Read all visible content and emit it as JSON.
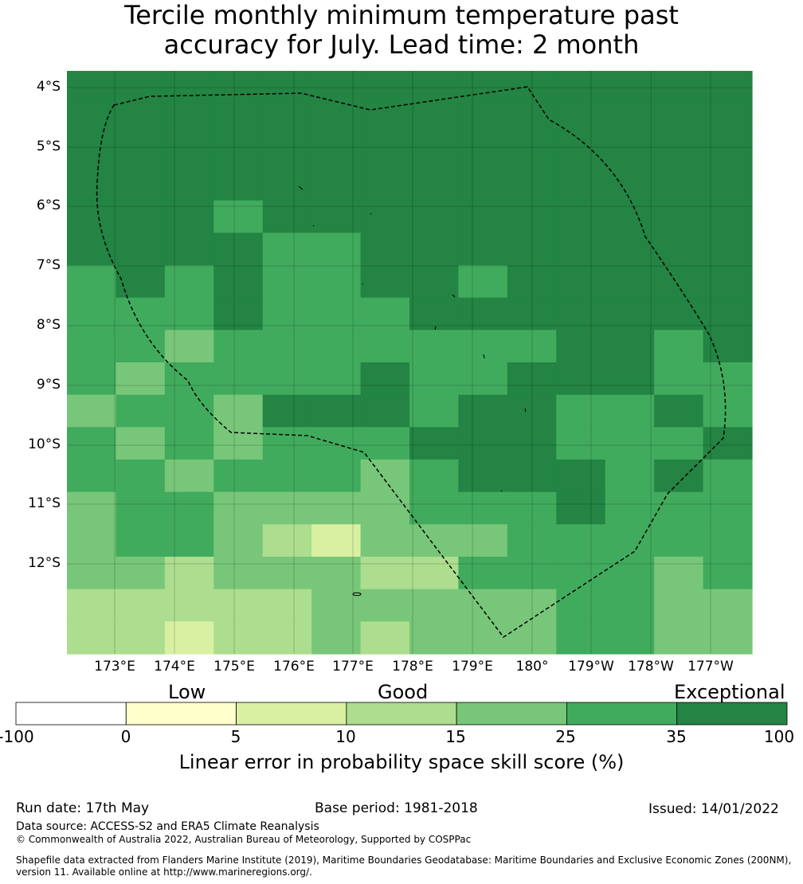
{
  "title": {
    "line1": "Tercile monthly minimum temperature past",
    "line2": "accuracy for July. Lead time: 2 month"
  },
  "map": {
    "lat_labels": [
      "4°S",
      "5°S",
      "6°S",
      "7°S",
      "8°S",
      "9°S",
      "10°S",
      "11°S",
      "12°S"
    ],
    "lon_labels": [
      "173°E",
      "174°E",
      "175°E",
      "176°E",
      "177°E",
      "178°E",
      "179°E",
      "180°",
      "179°W",
      "178°W",
      "177°W"
    ],
    "grid": [
      [
        6,
        6,
        6,
        6,
        6,
        6,
        6,
        6,
        6,
        6,
        6,
        6,
        6,
        6
      ],
      [
        6,
        6,
        6,
        6,
        6,
        6,
        6,
        6,
        6,
        6,
        6,
        6,
        6,
        6
      ],
      [
        6,
        6,
        6,
        6,
        6,
        6,
        6,
        6,
        6,
        6,
        6,
        6,
        6,
        6
      ],
      [
        6,
        6,
        6,
        6,
        6,
        6,
        6,
        6,
        6,
        6,
        6,
        6,
        6,
        6
      ],
      [
        6,
        6,
        6,
        5,
        6,
        6,
        6,
        6,
        6,
        6,
        6,
        6,
        6,
        6
      ],
      [
        6,
        6,
        6,
        6,
        5,
        5,
        6,
        6,
        6,
        6,
        6,
        6,
        6,
        6
      ],
      [
        5,
        6,
        5,
        6,
        5,
        5,
        6,
        6,
        5,
        6,
        6,
        6,
        6,
        6
      ],
      [
        5,
        5,
        5,
        6,
        5,
        5,
        5,
        6,
        6,
        6,
        6,
        6,
        6,
        6
      ],
      [
        5,
        5,
        4,
        5,
        5,
        5,
        5,
        5,
        5,
        5,
        6,
        6,
        5,
        6
      ],
      [
        5,
        4,
        5,
        5,
        5,
        5,
        6,
        5,
        5,
        6,
        6,
        6,
        5,
        5
      ],
      [
        4,
        5,
        5,
        4,
        6,
        6,
        6,
        5,
        6,
        6,
        5,
        5,
        6,
        5
      ],
      [
        5,
        4,
        5,
        4,
        5,
        5,
        5,
        6,
        6,
        6,
        5,
        5,
        5,
        6
      ],
      [
        5,
        5,
        4,
        5,
        5,
        5,
        4,
        5,
        6,
        6,
        6,
        5,
        6,
        5
      ],
      [
        4,
        5,
        5,
        4,
        4,
        4,
        4,
        5,
        5,
        5,
        6,
        5,
        5,
        5
      ],
      [
        4,
        5,
        5,
        4,
        3,
        2,
        4,
        4,
        4,
        5,
        5,
        5,
        5,
        5
      ],
      [
        4,
        4,
        3,
        4,
        4,
        4,
        3,
        3,
        5,
        5,
        5,
        5,
        4,
        5
      ],
      [
        3,
        3,
        3,
        3,
        3,
        4,
        4,
        4,
        4,
        4,
        5,
        5,
        4,
        4
      ],
      [
        3,
        3,
        2,
        3,
        3,
        4,
        3,
        4,
        4,
        4,
        5,
        5,
        4,
        4
      ]
    ]
  },
  "colorbar": {
    "categories": [
      "Low",
      "Good",
      "Exceptional"
    ],
    "ticks": [
      "-100",
      "0",
      "5",
      "10",
      "15",
      "25",
      "35",
      "100"
    ],
    "colors": [
      "#ffffff",
      "#ffffcc",
      "#d9f0a3",
      "#addd8e",
      "#78c679",
      "#41ab5d",
      "#238443"
    ],
    "label": "Linear error in probability space skill score (%)"
  },
  "footer": {
    "run_date": "Run date: 17th May",
    "base_period": "Base period: 1981-2018",
    "issued": "Issued: 14/01/2022",
    "data_source": "Data source: ACCESS-S2 and ERA5 Climate Reanalysis",
    "copyright": "© Commonwealth of Australia 2022, Australian Bureau of Meteorology, Supported by COSPPac",
    "shapefile_line1": "Shapefile data extracted from Flanders Marine Institute (2019), Maritime Boundaries Geodatabase: Maritime Boundaries and Exclusive Economic Zones (200NM),",
    "shapefile_line2": "version 11. Available online at http://www.marineregions.org/."
  }
}
